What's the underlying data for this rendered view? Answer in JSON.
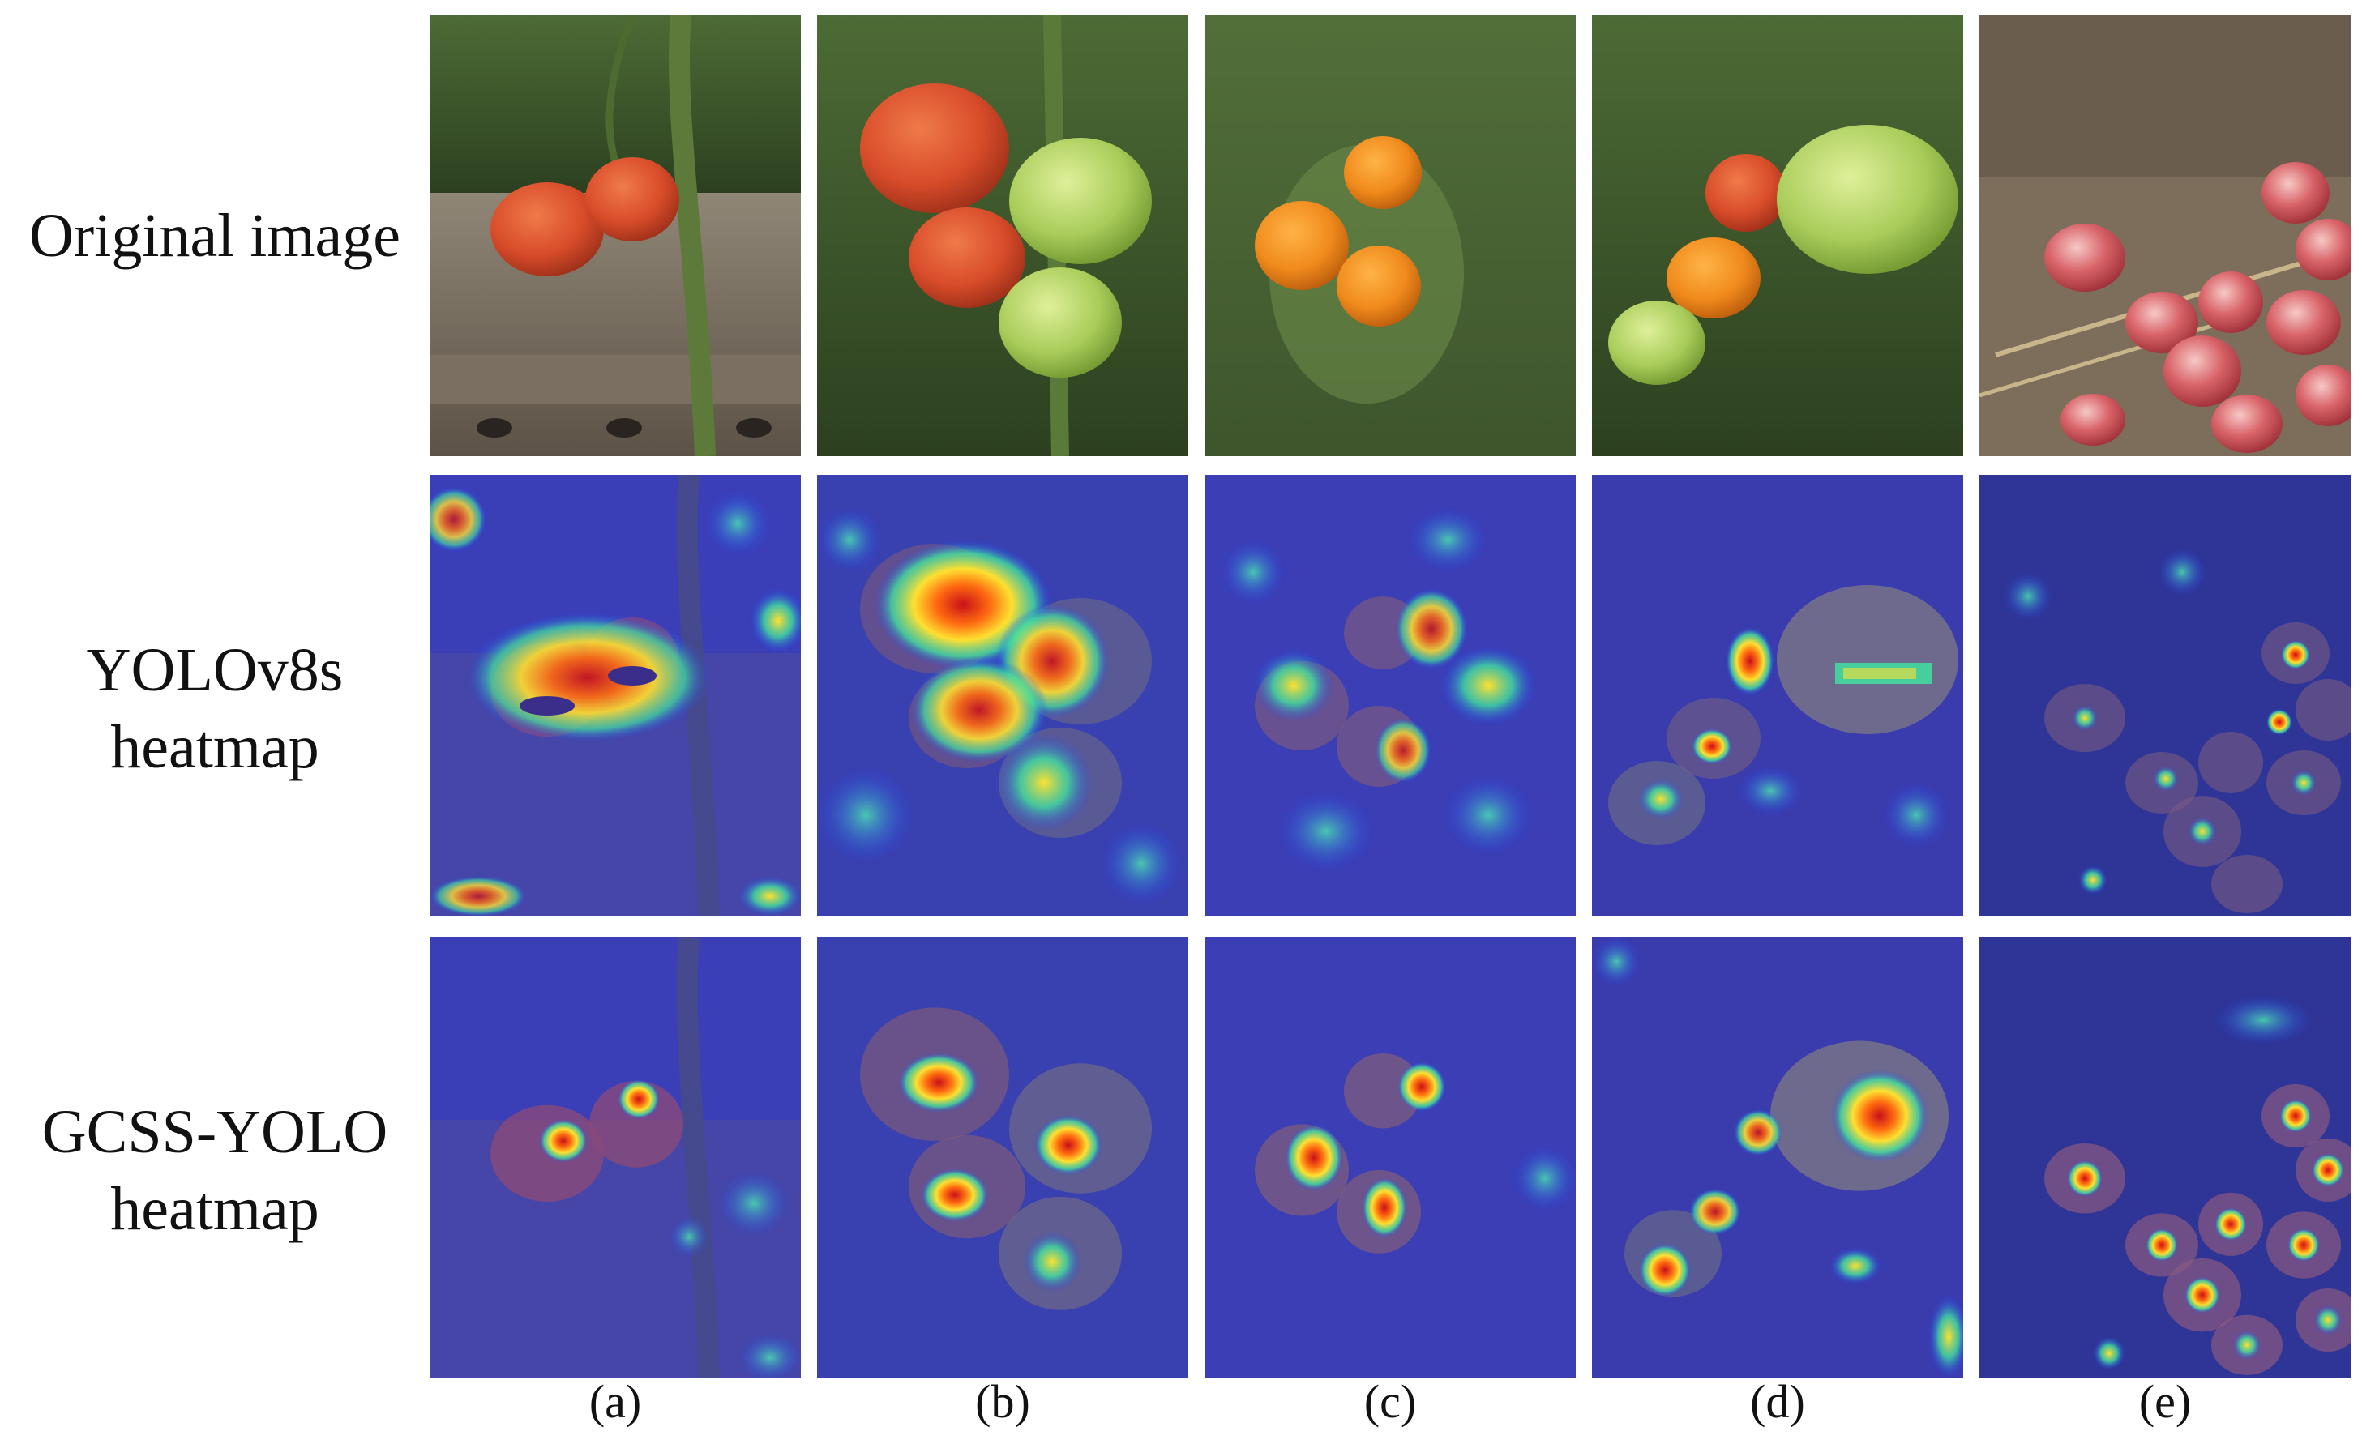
{
  "row_labels": {
    "original": "Original image",
    "yolo_line1": "YOLOv8s",
    "yolo_line2": "heatmap",
    "gcss_line1": "GCSS-YOLO",
    "gcss_line2": "heatmap"
  },
  "column_labels": [
    "(a)",
    "(b)",
    "(c)",
    "(d)",
    "(e)"
  ]
}
